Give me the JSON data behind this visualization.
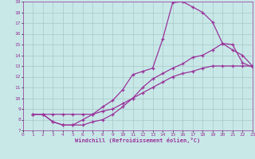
{
  "xlabel": "Windchill (Refroidissement éolien,°C)",
  "xlim": [
    0,
    23
  ],
  "ylim": [
    7,
    19
  ],
  "xticks": [
    0,
    1,
    2,
    3,
    4,
    5,
    6,
    7,
    8,
    9,
    10,
    11,
    12,
    13,
    14,
    15,
    16,
    17,
    18,
    19,
    20,
    21,
    22,
    23
  ],
  "yticks": [
    7,
    8,
    9,
    10,
    11,
    12,
    13,
    14,
    15,
    16,
    17,
    18,
    19
  ],
  "background_color": "#c8e8e8",
  "grid_color": "#a8c8c8",
  "line_color": "#993399",
  "line_width": 0.9,
  "marker_size": 3.5,
  "curve1_x": [
    1,
    2,
    3,
    4,
    5,
    6,
    7,
    8,
    9,
    10,
    11,
    12,
    13,
    14,
    15,
    16,
    17,
    18,
    19,
    20,
    21,
    22,
    23
  ],
  "curve1_y": [
    8.5,
    8.5,
    7.8,
    7.5,
    7.5,
    8.0,
    8.5,
    9.2,
    9.8,
    10.8,
    12.2,
    12.5,
    12.8,
    15.5,
    18.9,
    19.0,
    18.5,
    18.0,
    17.1,
    15.1,
    15.0,
    13.3,
    12.9
  ],
  "curve2_x": [
    1,
    2,
    3,
    4,
    5,
    6,
    7,
    8,
    9,
    10,
    11,
    12,
    13,
    14,
    15,
    16,
    17,
    18,
    19,
    20,
    21,
    22,
    23
  ],
  "curve2_y": [
    8.5,
    8.5,
    7.8,
    7.5,
    7.5,
    7.5,
    7.8,
    8.0,
    8.5,
    9.2,
    10.0,
    11.0,
    11.8,
    12.3,
    12.8,
    13.2,
    13.8,
    14.0,
    14.5,
    15.1,
    14.5,
    14.0,
    13.0
  ],
  "curve3_x": [
    1,
    2,
    3,
    4,
    5,
    6,
    7,
    8,
    9,
    10,
    11,
    12,
    13,
    14,
    15,
    16,
    17,
    18,
    19,
    20,
    21,
    22,
    23
  ],
  "curve3_y": [
    8.5,
    8.5,
    8.5,
    8.5,
    8.5,
    8.5,
    8.5,
    8.8,
    9.0,
    9.5,
    10.0,
    10.5,
    11.0,
    11.5,
    12.0,
    12.3,
    12.5,
    12.8,
    13.0,
    13.0,
    13.0,
    13.0,
    13.0
  ]
}
